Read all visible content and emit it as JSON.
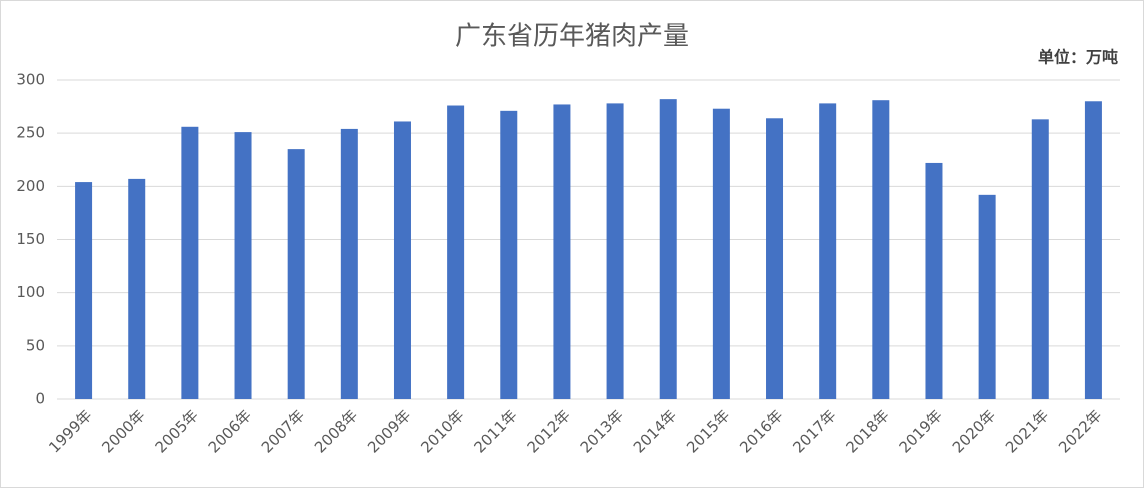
{
  "chart_data": {
    "type": "bar",
    "title": "广东省历年猪肉产量",
    "annotation": "单位：万吨",
    "categories": [
      "1999年",
      "2000年",
      "2005年",
      "2006年",
      "2007年",
      "2008年",
      "2009年",
      "2010年",
      "2011年",
      "2012年",
      "2013年",
      "2014年",
      "2015年",
      "2016年",
      "2017年",
      "2018年",
      "2019年",
      "2020年",
      "2021年",
      "2022年"
    ],
    "values": [
      204,
      207,
      256,
      251,
      235,
      254,
      261,
      276,
      271,
      277,
      278,
      282,
      273,
      264,
      278,
      281,
      222,
      192,
      263,
      280
    ],
    "color": "#4472c4",
    "ylim": [
      0,
      300
    ],
    "yticks": [
      0,
      50,
      100,
      150,
      200,
      250,
      300
    ],
    "grid": true
  }
}
